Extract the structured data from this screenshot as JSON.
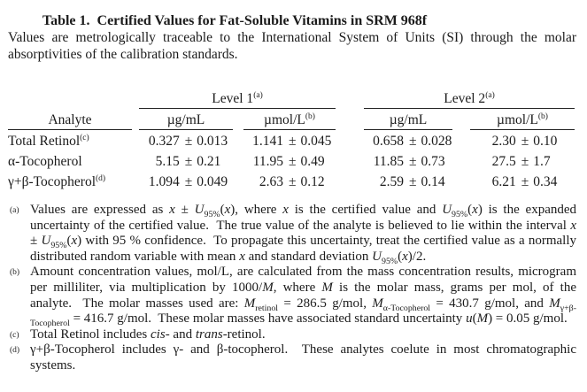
{
  "page": {
    "title": "Table 1.  Certified Values for Fat-Soluble Vitamins in SRM 968f",
    "intro": "Values are metrologically traceable to the International System of Units (SI) through the molar absorptivities of the calibration standards."
  },
  "table": {
    "analyte_header": "Analyte",
    "plus_minus": "±",
    "groups": [
      {
        "label": "Level 1",
        "marker": "(a)"
      },
      {
        "label": "Level 2",
        "marker": "(a)"
      }
    ],
    "unit_headers": [
      {
        "label": "µg/mL",
        "marker": ""
      },
      {
        "label": "µmol/L",
        "marker": "(b)"
      },
      {
        "label": "µg/mL",
        "marker": ""
      },
      {
        "label": "µmol/L",
        "marker": "(b)"
      }
    ],
    "rows": [
      {
        "analyte": "Total Retinol",
        "marker": "(c)",
        "cells": [
          {
            "v": "0.327",
            "u": "0.013"
          },
          {
            "v": "1.141",
            "u": "0.045"
          },
          {
            "v": "0.658",
            "u": "0.028"
          },
          {
            "v": "2.30",
            "u": "0.10"
          }
        ]
      },
      {
        "analyte": "α-Tocopherol",
        "marker": "",
        "cells": [
          {
            "v": "5.15",
            "u": "0.21"
          },
          {
            "v": "11.95",
            "u": "0.49"
          },
          {
            "v": "11.85",
            "u": "0.73"
          },
          {
            "v": "27.5",
            "u": "1.7"
          }
        ]
      },
      {
        "analyte": "γ+β-Tocopherol",
        "marker": "(d)",
        "cells": [
          {
            "v": "1.094",
            "u": "0.049"
          },
          {
            "v": "2.63",
            "u": "0.12"
          },
          {
            "v": "2.59",
            "u": "0.14"
          },
          {
            "v": "6.21",
            "u": "0.34"
          }
        ]
      }
    ]
  },
  "footnotes": [
    {
      "marker": "(a)",
      "segments": [
        {
          "t": "Values are expressed as "
        },
        {
          "t": "x",
          "i": true
        },
        {
          "t": " ± "
        },
        {
          "t": "U",
          "i": true
        },
        {
          "t": "95%",
          "sub": true
        },
        {
          "t": "("
        },
        {
          "t": "x",
          "i": true
        },
        {
          "t": "), where "
        },
        {
          "t": "x",
          "i": true
        },
        {
          "t": " is the certified value and "
        },
        {
          "t": "U",
          "i": true
        },
        {
          "t": "95%",
          "sub": true
        },
        {
          "t": "("
        },
        {
          "t": "x",
          "i": true
        },
        {
          "t": ") is the expanded uncertainty of the certified value.  The true value of the analyte is believed to lie within the interval "
        },
        {
          "t": "x",
          "i": true
        },
        {
          "t": " ± "
        },
        {
          "t": "U",
          "i": true
        },
        {
          "t": "95%",
          "sub": true
        },
        {
          "t": "("
        },
        {
          "t": "x",
          "i": true
        },
        {
          "t": ") with 95 % confidence.  To propagate this uncertainty, treat the certified value as a normally distributed random variable with mean "
        },
        {
          "t": "x",
          "i": true
        },
        {
          "t": " and standard deviation "
        },
        {
          "t": "U",
          "i": true
        },
        {
          "t": "95%",
          "sub": true
        },
        {
          "t": "("
        },
        {
          "t": "x",
          "i": true
        },
        {
          "t": ")/2."
        }
      ]
    },
    {
      "marker": "(b)",
      "segments": [
        {
          "t": "Amount concentration values, mol/L, are calculated from the mass concentration results, microgram per milliliter, via multiplication by 1000/"
        },
        {
          "t": "M",
          "i": true
        },
        {
          "t": ", where "
        },
        {
          "t": "M",
          "i": true
        },
        {
          "t": " is the molar mass, grams per mol, of the analyte.  The molar masses used are: "
        },
        {
          "t": "M",
          "i": true
        },
        {
          "t": "retinol",
          "sub": true
        },
        {
          "t": " = 286.5 g/mol, "
        },
        {
          "t": "M",
          "i": true
        },
        {
          "t": "α-Tocopherol",
          "sub": true
        },
        {
          "t": " = 430.7 g/mol, and "
        },
        {
          "t": "M",
          "i": true
        },
        {
          "t": "γ+β-Tocopherol",
          "sub": true
        },
        {
          "t": " = 416.7 g/mol.  These molar masses have associated standard uncertainty "
        },
        {
          "t": "u",
          "i": true
        },
        {
          "t": "("
        },
        {
          "t": "M",
          "i": true
        },
        {
          "t": ") = 0.05 g/mol."
        }
      ]
    },
    {
      "marker": "(c)",
      "segments": [
        {
          "t": "Total Retinol includes "
        },
        {
          "t": "cis",
          "i": true
        },
        {
          "t": "- and "
        },
        {
          "t": "trans",
          "i": true
        },
        {
          "t": "-retinol."
        }
      ]
    },
    {
      "marker": "(d)",
      "segments": [
        {
          "t": "γ+β-Tocopherol includes γ- and β-tocopherol.  These analytes coelute in most chromatographic systems."
        }
      ]
    }
  ]
}
